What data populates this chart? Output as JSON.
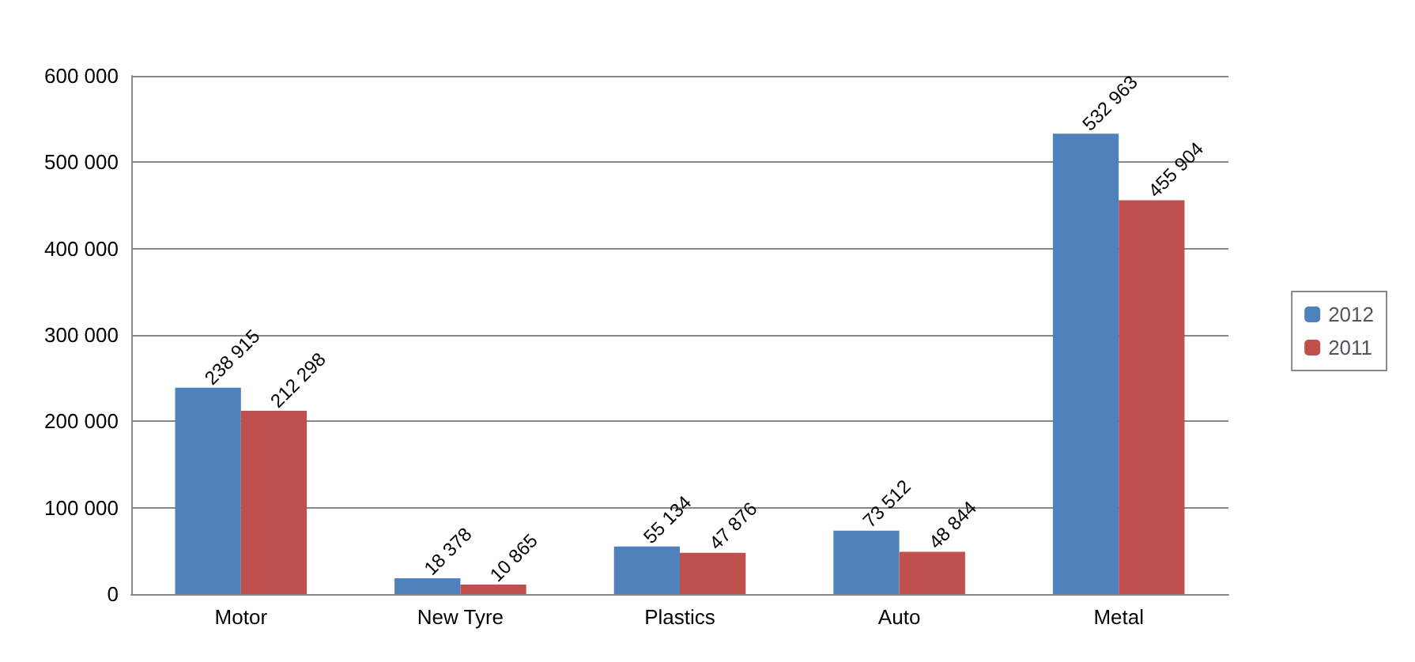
{
  "chart_data": {
    "type": "bar",
    "categories": [
      "Motor",
      "New Tyre",
      "Plastics",
      "Auto",
      "Metal"
    ],
    "series": [
      {
        "name": "2012",
        "color": "#4f81bd",
        "values": [
          238915,
          18378,
          55134,
          73512,
          532963
        ],
        "value_labels": [
          "238 915",
          "18 378",
          "55 134",
          "73 512",
          "532 963"
        ]
      },
      {
        "name": "2011",
        "color": "#c0504d",
        "values": [
          212298,
          10865,
          47876,
          48844,
          455904
        ],
        "value_labels": [
          "212 298",
          "10 865",
          "47 876",
          "48 844",
          "455 904"
        ]
      }
    ],
    "ylim": [
      0,
      600000
    ],
    "yticks": [
      {
        "value": 0,
        "label": "0"
      },
      {
        "value": 100000,
        "label": "100 000"
      },
      {
        "value": 200000,
        "label": "200 000"
      },
      {
        "value": 300000,
        "label": "300 000"
      },
      {
        "value": 400000,
        "label": "400 000"
      },
      {
        "value": 500000,
        "label": "500 000"
      },
      {
        "value": 600000,
        "label": "600 000"
      }
    ],
    "grid": "y",
    "legend": "right"
  }
}
